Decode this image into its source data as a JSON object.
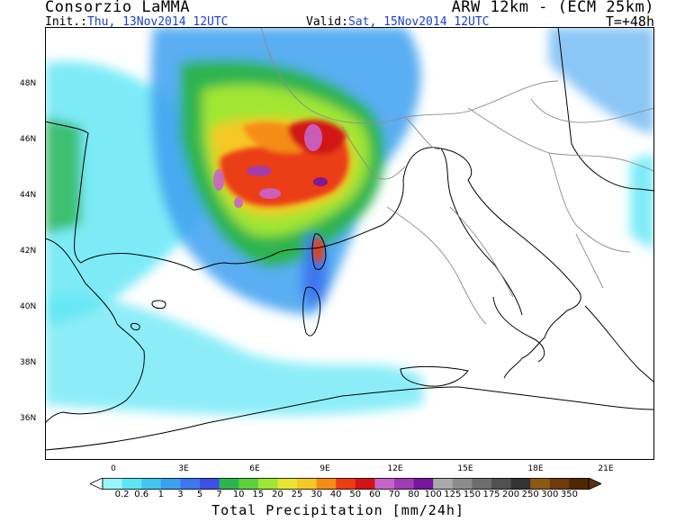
{
  "header": {
    "title": "Consorzio LaMMA",
    "model": "ARW 12km - (ECM 25km)",
    "init_label": "Init.:",
    "init_value": "Thu, 13Nov2014 12UTC",
    "valid_label": "Valid:",
    "valid_value": "Sat, 15Nov2014 12UTC",
    "lead_time": "T=+48h"
  },
  "axes": {
    "lat_labels": [
      "48N",
      "46N",
      "44N",
      "42N",
      "40N",
      "38N",
      "36N"
    ],
    "lon_labels": [
      "0",
      "3E",
      "6E",
      "9E",
      "12E",
      "15E",
      "18E",
      "21E"
    ]
  },
  "colorbar": {
    "title": "Total Precipitation [mm/24h]",
    "levels": [
      "0.2",
      "0.6",
      "1",
      "3",
      "5",
      "7",
      "10",
      "15",
      "20",
      "25",
      "30",
      "40",
      "50",
      "60",
      "70",
      "80",
      "100",
      "125",
      "150",
      "175",
      "200",
      "250",
      "300",
      "350"
    ],
    "colors": [
      "#98f5ff",
      "#5ce6f5",
      "#3cc8f0",
      "#3ca0f0",
      "#3c78f0",
      "#3c50e6",
      "#2db450",
      "#5ad23c",
      "#a0e632",
      "#e6e632",
      "#f5c828",
      "#f58c14",
      "#eb3c14",
      "#d21414",
      "#c864c8",
      "#a03cb4",
      "#7814a0",
      "#aaaaaa",
      "#8c8c8c",
      "#6e6e6e",
      "#505050",
      "#323232",
      "#8c5a14",
      "#6e3c0a",
      "#502800"
    ],
    "low_arrow_color": "#ffffff",
    "high_arrow_color": "#5a3214"
  },
  "map": {
    "sea_color": "#ffffff",
    "coast_color": "#000000",
    "border_color": "#8c8c8c"
  }
}
